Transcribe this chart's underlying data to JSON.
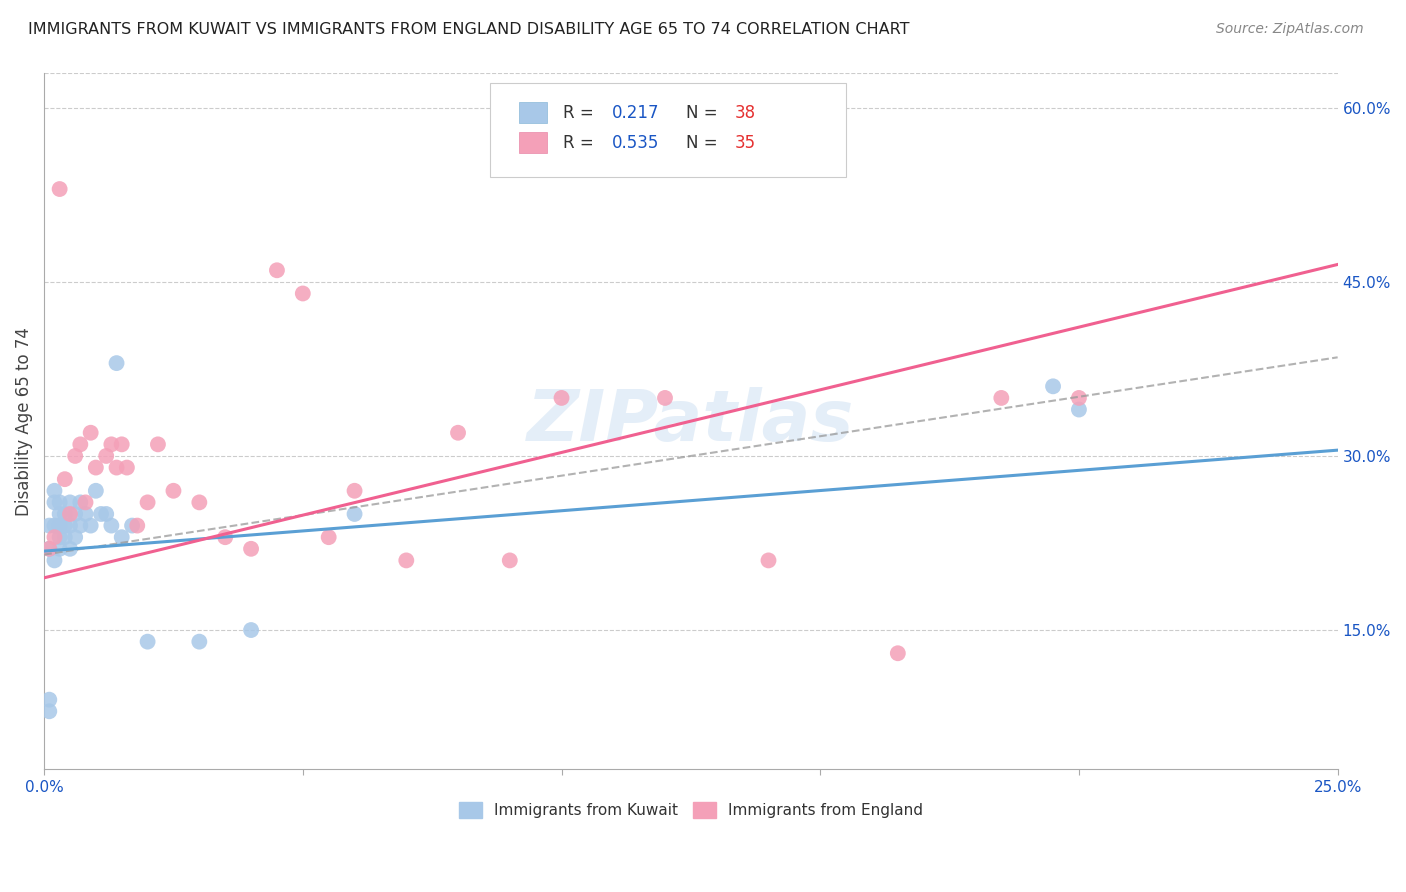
{
  "title": "IMMIGRANTS FROM KUWAIT VS IMMIGRANTS FROM ENGLAND DISABILITY AGE 65 TO 74 CORRELATION CHART",
  "source": "Source: ZipAtlas.com",
  "ylabel": "Disability Age 65 to 74",
  "xlim": [
    0.0,
    0.25
  ],
  "ylim": [
    0.03,
    0.63
  ],
  "r_kuwait": 0.217,
  "n_kuwait": 38,
  "r_england": 0.535,
  "n_england": 35,
  "color_kuwait": "#a8c8e8",
  "color_england": "#f4a0b8",
  "color_kuwait_line": "#5a9fd4",
  "color_england_line": "#f06090",
  "color_dashed": "#999999",
  "color_r_text": "#1a56c4",
  "color_n_text": "#e53030",
  "watermark": "ZIPatlas",
  "kuwait_x": [
    0.001,
    0.001,
    0.001,
    0.001,
    0.002,
    0.002,
    0.002,
    0.002,
    0.003,
    0.003,
    0.003,
    0.003,
    0.003,
    0.004,
    0.004,
    0.004,
    0.005,
    0.005,
    0.005,
    0.006,
    0.006,
    0.007,
    0.007,
    0.008,
    0.009,
    0.01,
    0.011,
    0.012,
    0.013,
    0.014,
    0.015,
    0.017,
    0.02,
    0.03,
    0.04,
    0.06,
    0.195,
    0.2
  ],
  "kuwait_y": [
    0.08,
    0.09,
    0.22,
    0.24,
    0.21,
    0.24,
    0.26,
    0.27,
    0.22,
    0.23,
    0.24,
    0.25,
    0.26,
    0.23,
    0.24,
    0.25,
    0.22,
    0.24,
    0.26,
    0.23,
    0.25,
    0.24,
    0.26,
    0.25,
    0.24,
    0.27,
    0.25,
    0.25,
    0.24,
    0.38,
    0.23,
    0.24,
    0.14,
    0.14,
    0.15,
    0.25,
    0.36,
    0.34
  ],
  "england_x": [
    0.001,
    0.002,
    0.003,
    0.004,
    0.005,
    0.006,
    0.007,
    0.008,
    0.009,
    0.01,
    0.012,
    0.013,
    0.014,
    0.015,
    0.016,
    0.018,
    0.02,
    0.022,
    0.025,
    0.03,
    0.035,
    0.04,
    0.045,
    0.05,
    0.055,
    0.06,
    0.07,
    0.08,
    0.09,
    0.1,
    0.12,
    0.14,
    0.165,
    0.185,
    0.2
  ],
  "england_y": [
    0.22,
    0.23,
    0.53,
    0.28,
    0.25,
    0.3,
    0.31,
    0.26,
    0.32,
    0.29,
    0.3,
    0.31,
    0.29,
    0.31,
    0.29,
    0.24,
    0.26,
    0.31,
    0.27,
    0.26,
    0.23,
    0.22,
    0.46,
    0.44,
    0.23,
    0.27,
    0.21,
    0.32,
    0.21,
    0.35,
    0.35,
    0.21,
    0.13,
    0.35,
    0.35
  ],
  "kuwait_line_x0": 0.0,
  "kuwait_line_y0": 0.218,
  "kuwait_line_x1": 0.25,
  "kuwait_line_y1": 0.305,
  "england_line_x0": 0.0,
  "england_line_y0": 0.195,
  "england_line_x1": 0.25,
  "england_line_y1": 0.465,
  "dashed_line_x0": 0.0,
  "dashed_line_y0": 0.215,
  "dashed_line_x1": 0.25,
  "dashed_line_y1": 0.385
}
